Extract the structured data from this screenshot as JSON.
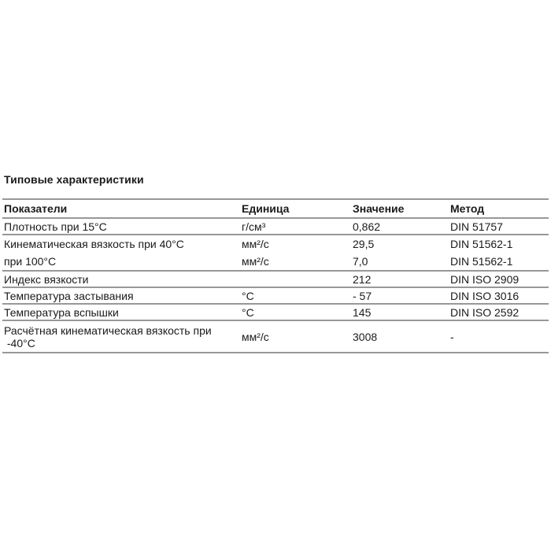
{
  "page": {
    "title": "Типовые характеристики"
  },
  "table": {
    "columns": [
      "Показатели",
      "Единица",
      "Значение",
      "Метод"
    ],
    "rows": [
      {
        "indicator": "Плотность при 15°C",
        "unit": "г/см³",
        "value": "0,862",
        "method": "DIN 51757"
      },
      {
        "indicator": "Кинематическая вязкость при 40°C",
        "unit": "мм²/с",
        "value": "29,5",
        "method": "DIN 51562-1"
      },
      {
        "indicator": "при 100°C",
        "unit": "мм²/с",
        "value": "7,0",
        "method": "DIN 51562-1"
      },
      {
        "indicator": "Индекс вязкости",
        "unit": "",
        "value": "212",
        "method": "DIN ISO 2909"
      },
      {
        "indicator": "Температура застывания",
        "unit": "°C",
        "value": "- 57",
        "method": "DIN ISO 3016"
      },
      {
        "indicator": "Температура вспышки",
        "unit": "°C",
        "value": "145",
        "method": "DIN ISO 2592"
      },
      {
        "indicator": "Расчётная кинематическая вязкость при\n -40°C",
        "unit": "мм²/с",
        "value": "3008",
        "method": "-"
      }
    ]
  },
  "colors": {
    "rule_gray": "#98989a",
    "text": "#1a1a1a",
    "background": "#ffffff"
  }
}
